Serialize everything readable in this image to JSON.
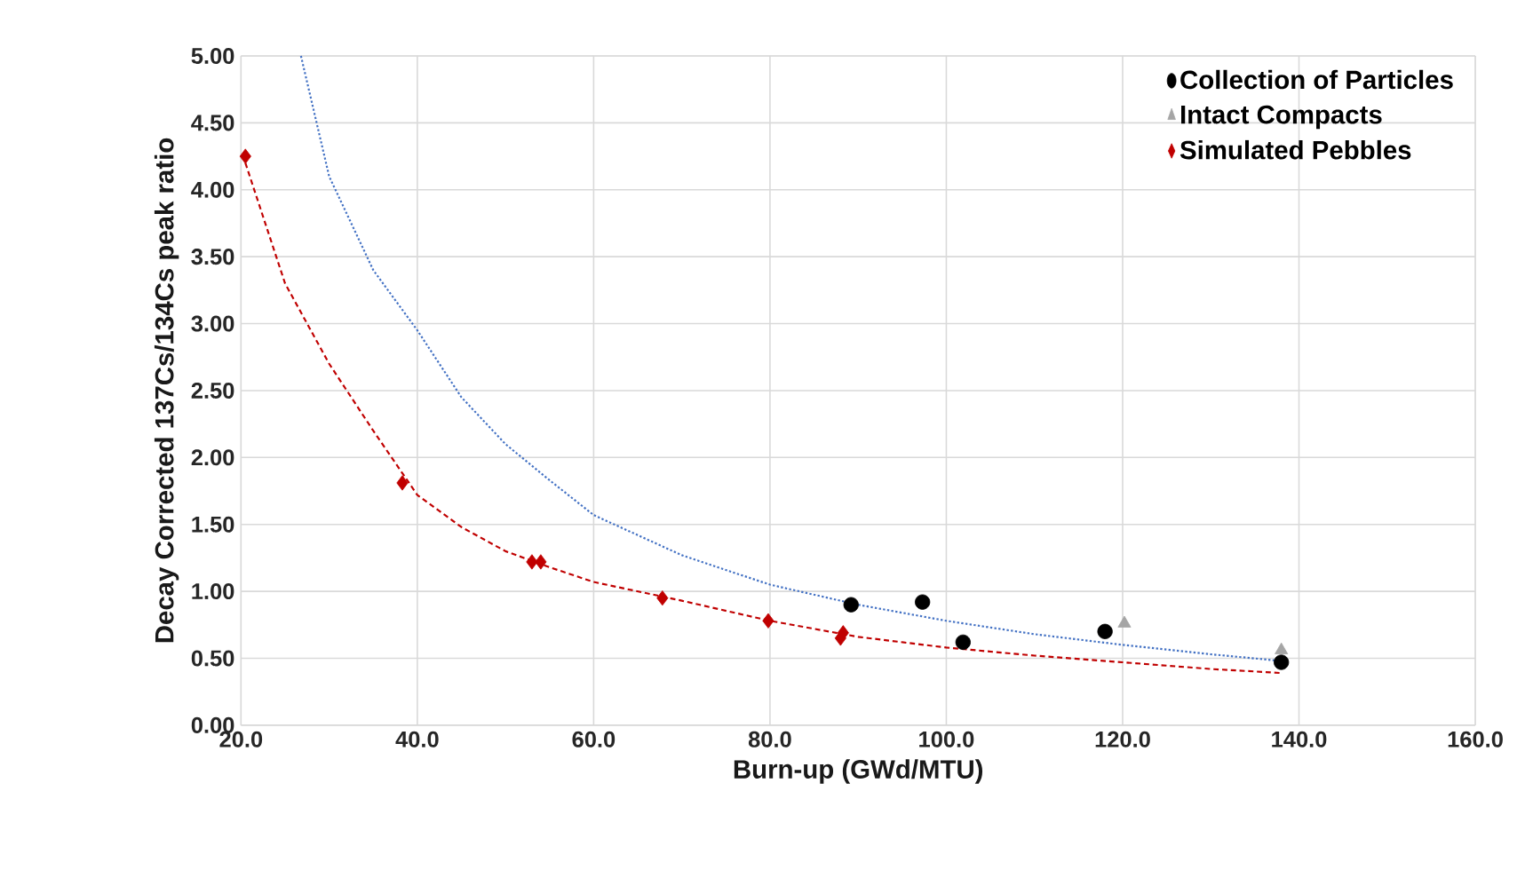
{
  "chart_data": {
    "type": "scatter",
    "xlabel": "Burn-up (GWd/MTU)",
    "ylabel": "Decay Corrected 137Cs/134Cs peak ratio",
    "xlim": [
      20,
      160
    ],
    "ylim": [
      0,
      5
    ],
    "xticks": [
      {
        "value": 20,
        "label": "20.0"
      },
      {
        "value": 40,
        "label": "40.0"
      },
      {
        "value": 60,
        "label": "60.0"
      },
      {
        "value": 80,
        "label": "80.0"
      },
      {
        "value": 100,
        "label": "100.0"
      },
      {
        "value": 120,
        "label": "120.0"
      },
      {
        "value": 140,
        "label": "140.0"
      },
      {
        "value": 160,
        "label": "160.0"
      }
    ],
    "yticks": [
      {
        "value": 0,
        "label": "0.00"
      },
      {
        "value": 0.5,
        "label": "0.50"
      },
      {
        "value": 1,
        "label": "1.00"
      },
      {
        "value": 1.5,
        "label": "1.50"
      },
      {
        "value": 2,
        "label": "2.00"
      },
      {
        "value": 2.5,
        "label": "2.50"
      },
      {
        "value": 3,
        "label": "3.00"
      },
      {
        "value": 3.5,
        "label": "3.50"
      },
      {
        "value": 4,
        "label": "4.00"
      },
      {
        "value": 4.5,
        "label": "4.50"
      },
      {
        "value": 5,
        "label": "5.00"
      }
    ],
    "grid": true,
    "legend": "top right",
    "series": [
      {
        "type": "line",
        "color": "#4472c4",
        "line_style": "dotted",
        "marker": "none",
        "x": [
          26.8,
          30,
          35,
          40,
          45,
          50,
          55,
          60,
          70,
          80,
          90,
          100,
          110,
          120,
          130,
          138
        ],
        "values": [
          5.0,
          4.1,
          3.4,
          2.95,
          2.45,
          2.1,
          1.83,
          1.57,
          1.27,
          1.05,
          0.9,
          0.78,
          0.68,
          0.6,
          0.53,
          0.48
        ]
      },
      {
        "type": "line",
        "color": "#c00000",
        "line_style": "dashed",
        "marker": "none",
        "x": [
          20.5,
          25,
          30,
          35,
          40,
          45,
          50,
          55,
          60,
          70,
          80,
          90,
          100,
          110,
          120,
          130,
          138
        ],
        "values": [
          4.2,
          3.3,
          2.7,
          2.2,
          1.72,
          1.48,
          1.3,
          1.18,
          1.07,
          0.93,
          0.78,
          0.66,
          0.58,
          0.52,
          0.47,
          0.42,
          0.39
        ]
      },
      {
        "name": "Collection of Particles",
        "color": "#000000",
        "marker": "circle",
        "x": [
          89.2,
          97.3,
          101.9,
          118,
          138
        ],
        "values": [
          0.9,
          0.92,
          0.62,
          0.7,
          0.47
        ]
      },
      {
        "name": "Intact Compacts",
        "color": "#a5a5a5",
        "marker": "triangle",
        "x": [
          120.2,
          138
        ],
        "values": [
          0.76,
          0.56
        ]
      },
      {
        "name": "Simulated Pebbles",
        "color": "#c00000",
        "marker": "diamond",
        "x": [
          20.5,
          38.3,
          53,
          54,
          67.8,
          79.8,
          88,
          88.3
        ],
        "values": [
          4.25,
          1.81,
          1.22,
          1.22,
          0.95,
          0.78,
          0.65,
          0.69
        ]
      }
    ]
  }
}
